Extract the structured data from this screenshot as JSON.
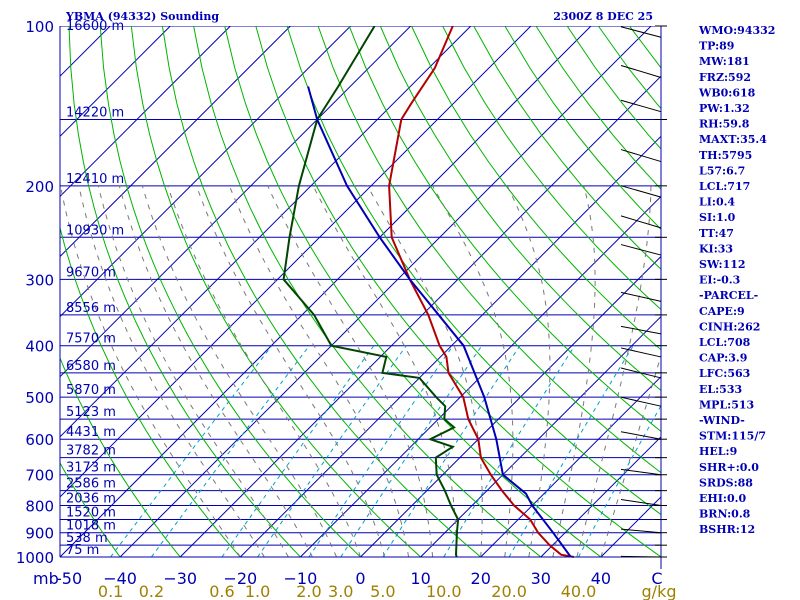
{
  "chart_data": {
    "type": "line",
    "title": "YBMA (94332) Sounding",
    "time": "2300Z  8 DEC 25",
    "y_axis": {
      "scale": "log-pressure",
      "unit": "mb",
      "ylim": [
        1000,
        100
      ]
    },
    "x_axis": {
      "unit": "C",
      "xlim": [
        -50,
        50
      ]
    },
    "pressure_ticks": [
      {
        "p": 100,
        "label": "100"
      },
      {
        "p": 200,
        "label": "200"
      },
      {
        "p": 300,
        "label": "300"
      },
      {
        "p": 400,
        "label": "400"
      },
      {
        "p": 500,
        "label": "500"
      },
      {
        "p": 600,
        "label": "600"
      },
      {
        "p": 700,
        "label": "700"
      },
      {
        "p": 800,
        "label": "800"
      },
      {
        "p": 900,
        "label": "900"
      },
      {
        "p": 1000,
        "label": "1000"
      }
    ],
    "height_labels": [
      {
        "p": 100,
        "label": "16600 m"
      },
      {
        "p": 150,
        "label": "14220 m"
      },
      {
        "p": 200,
        "label": "12410 m"
      },
      {
        "p": 250,
        "label": "10930 m"
      },
      {
        "p": 300,
        "label": "9670 m"
      },
      {
        "p": 350,
        "label": "8556 m"
      },
      {
        "p": 400,
        "label": "7570 m"
      },
      {
        "p": 450,
        "label": "6580 m"
      },
      {
        "p": 500,
        "label": "5870 m"
      },
      {
        "p": 550,
        "label": "5123 m"
      },
      {
        "p": 600,
        "label": "4431 m"
      },
      {
        "p": 650,
        "label": "3782 m"
      },
      {
        "p": 700,
        "label": "3173 m"
      },
      {
        "p": 750,
        "label": "2586 m"
      },
      {
        "p": 800,
        "label": "2036 m"
      },
      {
        "p": 850,
        "label": "1520 m"
      },
      {
        "p": 900,
        "label": "1018 m"
      },
      {
        "p": 950,
        "label": "538 m"
      },
      {
        "p": 1000,
        "label": "75 m"
      }
    ],
    "unit_label": "mb",
    "temp_ticks": [
      {
        "t": -50,
        "label": "-50"
      },
      {
        "t": -40,
        "label": "−40"
      },
      {
        "t": -30,
        "label": "−30"
      },
      {
        "t": -20,
        "label": "−20"
      },
      {
        "t": -10,
        "label": "−10"
      },
      {
        "t": 0,
        "label": "0"
      },
      {
        "t": 10,
        "label": "10"
      },
      {
        "t": 20,
        "label": "20"
      },
      {
        "t": 30,
        "label": "30"
      },
      {
        "t": 40,
        "label": "40"
      },
      {
        "t": 50,
        "label": "C"
      }
    ],
    "mixing_ratio_labels": [
      {
        "w": 0.1,
        "label": "0.1"
      },
      {
        "w": 0.2,
        "label": "0.2"
      },
      {
        "w": 0.6,
        "label": "0.6"
      },
      {
        "w": 1.0,
        "label": "1.0"
      },
      {
        "w": 2.0,
        "label": "2.0"
      },
      {
        "w": 3.0,
        "label": "3.0"
      },
      {
        "w": 5.0,
        "label": "5.0"
      },
      {
        "w": 10.0,
        "label": "10.0"
      },
      {
        "w": 20.0,
        "label": "20.0"
      },
      {
        "w": 40.0,
        "label": "40.0"
      }
    ],
    "mixing_ratio_unit": "g/kg",
    "series": [
      {
        "name": "Temperature",
        "color": "#b40000",
        "points": [
          {
            "p": 1000,
            "t": 35.5
          },
          {
            "p": 990,
            "t": 33
          },
          {
            "p": 950,
            "t": 29.5
          },
          {
            "p": 900,
            "t": 25.5
          },
          {
            "p": 850,
            "t": 22
          },
          {
            "p": 800,
            "t": 17
          },
          {
            "p": 750,
            "t": 12.5
          },
          {
            "p": 700,
            "t": 8
          },
          {
            "p": 650,
            "t": 3.5
          },
          {
            "p": 600,
            "t": 0
          },
          {
            "p": 550,
            "t": -5
          },
          {
            "p": 500,
            "t": -9.5
          },
          {
            "p": 450,
            "t": -16
          },
          {
            "p": 420,
            "t": -19
          },
          {
            "p": 400,
            "t": -22
          },
          {
            "p": 350,
            "t": -29
          },
          {
            "p": 300,
            "t": -38
          },
          {
            "p": 250,
            "t": -48
          },
          {
            "p": 200,
            "t": -57
          },
          {
            "p": 150,
            "t": -66
          },
          {
            "p": 140,
            "t": -67
          },
          {
            "p": 120,
            "t": -69
          },
          {
            "p": 100,
            "t": -73
          }
        ]
      },
      {
        "name": "Dewpoint",
        "color": "#004600",
        "points": [
          {
            "p": 1000,
            "t": 16
          },
          {
            "p": 990,
            "t": 15.5
          },
          {
            "p": 900,
            "t": 12
          },
          {
            "p": 850,
            "t": 10
          },
          {
            "p": 800,
            "t": 6.5
          },
          {
            "p": 750,
            "t": 3
          },
          {
            "p": 700,
            "t": -1
          },
          {
            "p": 650,
            "t": -4
          },
          {
            "p": 620,
            "t": -3
          },
          {
            "p": 600,
            "t": -8
          },
          {
            "p": 570,
            "t": -6
          },
          {
            "p": 550,
            "t": -9
          },
          {
            "p": 520,
            "t": -11
          },
          {
            "p": 500,
            "t": -14
          },
          {
            "p": 460,
            "t": -20
          },
          {
            "p": 450,
            "t": -27
          },
          {
            "p": 420,
            "t": -29
          },
          {
            "p": 400,
            "t": -40
          },
          {
            "p": 350,
            "t": -48
          },
          {
            "p": 300,
            "t": -59
          },
          {
            "p": 250,
            "t": -65
          },
          {
            "p": 200,
            "t": -72
          },
          {
            "p": 150,
            "t": -80
          },
          {
            "p": 130,
            "t": -82
          },
          {
            "p": 100,
            "t": -86
          }
        ]
      },
      {
        "name": "Parcel",
        "color": "#0000b4",
        "points": [
          {
            "p": 1000,
            "t": 35
          },
          {
            "p": 900,
            "t": 28
          },
          {
            "p": 800,
            "t": 20
          },
          {
            "p": 760,
            "t": 17
          },
          {
            "p": 700,
            "t": 10
          },
          {
            "p": 600,
            "t": 3
          },
          {
            "p": 500,
            "t": -6
          },
          {
            "p": 400,
            "t": -18
          },
          {
            "p": 300,
            "t": -38
          },
          {
            "p": 250,
            "t": -50
          },
          {
            "p": 200,
            "t": -64
          },
          {
            "p": 150,
            "t": -80
          },
          {
            "p": 130,
            "t": -87
          }
        ]
      }
    ]
  },
  "indices": [
    "WMO:94332",
    "TP:89",
    "MW:181",
    "FRZ:592",
    "WB0:618",
    "PW:1.32",
    "RH:59.8",
    "MAXT:35.4",
    "TH:5795",
    "L57:6.7",
    "LCL:717",
    "LI:0.4",
    "SI:1.0",
    "TT:47",
    "KI:33",
    "SW:112",
    "EI:-0.3",
    "-PARCEL-",
    "CAPE:9",
    "CINH:262",
    "LCL:708",
    "CAP:3.9",
    "LFC:563",
    "EL:533",
    "MPL:513",
    "-WIND-",
    "STM:115/7",
    "HEL:9",
    "SHR+:0.0",
    "SRDS:88",
    "EHI:0.0",
    "BRN:0.8",
    "BSHR:12"
  ],
  "colors": {
    "text": "#0000b4",
    "isobar": "#0000b4",
    "isotherm": "#0000b4",
    "dry_adiabat": "#00b400",
    "moist_adiabat": "#787878",
    "mixing_ratio": "#00a0c8",
    "mixing_label": "#a08000"
  }
}
